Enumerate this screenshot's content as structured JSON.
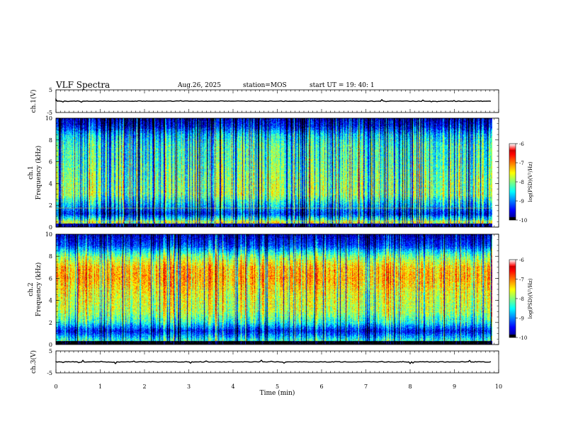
{
  "header": {
    "title": "VLF Spectra",
    "date": "Aug.26, 2025",
    "station": "station=MOS",
    "start_ut": "start UT =   19: 40: 1"
  },
  "chart_data": {
    "type": "heatmap",
    "xlabel": "Time (min)",
    "xlim": [
      0,
      10
    ],
    "x_ticks": [
      "0",
      "1",
      "2",
      "3",
      "4",
      "5",
      "6",
      "7",
      "8",
      "9",
      "10"
    ],
    "data_end_min": 9.85,
    "panels": [
      {
        "id": "ch1-waveform",
        "kind": "waveform",
        "ylabel": "ch.1(V)",
        "ylim": [
          -5,
          5
        ],
        "y_ticks": [
          "5",
          "-5"
        ],
        "baseline": 0
      },
      {
        "id": "ch1-spectrogram",
        "kind": "spectrogram",
        "ylabel_top": "ch.1",
        "ylabel": "Frequency (kHz)",
        "ylim": [
          0,
          10
        ],
        "y_ticks": [
          "0",
          "2",
          "4",
          "6",
          "8",
          "10"
        ],
        "profile_freqs_khz": [
          0.3,
          1.2,
          2.0,
          3.0,
          4.5,
          6.0,
          7.5,
          8.5,
          9.3,
          10.0
        ],
        "profile_levels": [
          -7.4,
          -9.3,
          -8.6,
          -7.8,
          -7.9,
          -8.1,
          -8.2,
          -8.6,
          -9.4,
          -9.7
        ],
        "dark_burst_fraction": 0.28,
        "colorbar": {
          "label": "log(PSD)(V²/Hz)",
          "ticks": [
            "-6",
            "-7",
            "-8",
            "-9",
            "-10"
          ],
          "range": [
            -10,
            -6
          ]
        }
      },
      {
        "id": "ch2-spectrogram",
        "kind": "spectrogram",
        "ylabel_top": "ch.2",
        "ylabel": "Frequency (kHz)",
        "ylim": [
          0,
          10
        ],
        "y_ticks": [
          "0",
          "2",
          "4",
          "6",
          "8",
          "10"
        ],
        "profile_freqs_khz": [
          0.3,
          1.2,
          2.0,
          3.0,
          4.5,
          6.0,
          7.0,
          8.0,
          9.0,
          10.0
        ],
        "profile_levels": [
          -8.3,
          -9.5,
          -8.4,
          -7.8,
          -7.6,
          -7.2,
          -7.3,
          -8.0,
          -9.3,
          -9.8
        ],
        "dark_burst_fraction": 0.12,
        "colorbar": {
          "label": "log(PSD)(V²/Hz)",
          "ticks": [
            "-6",
            "-7",
            "-8",
            "-9",
            "-10"
          ],
          "range": [
            -10,
            -6
          ]
        }
      },
      {
        "id": "ch3-waveform",
        "kind": "waveform",
        "ylabel": "ch.3(V)",
        "ylim": [
          -5,
          5
        ],
        "y_ticks": [
          "5",
          "-5"
        ],
        "baseline": 0
      }
    ]
  }
}
